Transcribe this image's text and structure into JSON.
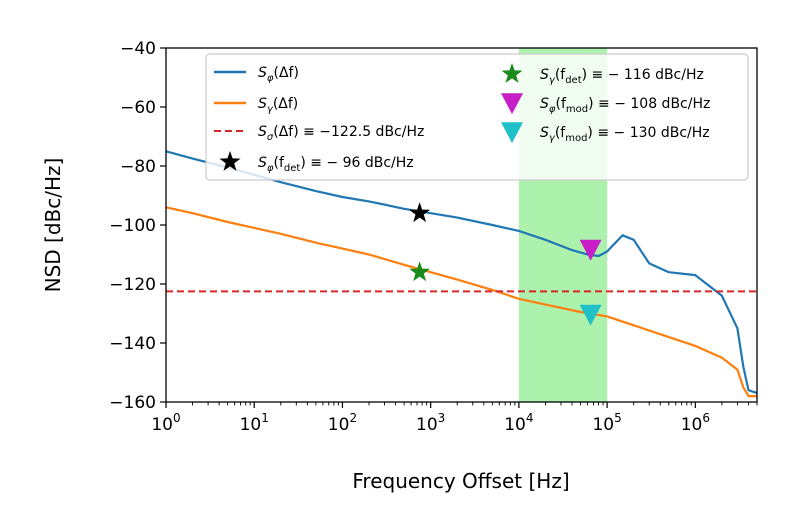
{
  "chart_data": {
    "type": "line",
    "xscale": "log",
    "xlim": [
      1,
      5000000
    ],
    "ylim": [
      -160,
      -40
    ],
    "xlabel": "Frequency Offset [Hz]",
    "ylabel": "NSD [dBc/Hz]",
    "grid": false,
    "legend_position": "top",
    "x_ticks": [
      {
        "base": "10",
        "exp": "0",
        "value": 1
      },
      {
        "base": "10",
        "exp": "1",
        "value": 10
      },
      {
        "base": "10",
        "exp": "2",
        "value": 100
      },
      {
        "base": "10",
        "exp": "3",
        "value": 1000
      },
      {
        "base": "10",
        "exp": "4",
        "value": 10000
      },
      {
        "base": "10",
        "exp": "5",
        "value": 100000
      },
      {
        "base": "10",
        "exp": "6",
        "value": 1000000
      }
    ],
    "y_ticks": [
      "−40",
      "−60",
      "−80",
      "−100",
      "−120",
      "−140",
      "−160"
    ],
    "y_tick_values": [
      -40,
      -60,
      -80,
      -100,
      -120,
      -140,
      -160
    ],
    "shaded_region": {
      "x": [
        10000,
        100000
      ],
      "color": "#90ee90"
    },
    "series": [
      {
        "name": "Sφ(Δf)",
        "color": "#1f77b4",
        "x": [
          1,
          2,
          5,
          10,
          20,
          50,
          100,
          200,
          500,
          1000,
          2000,
          5000,
          10000,
          20000,
          40000,
          60000,
          80000,
          100000,
          150000,
          200000,
          300000,
          500000,
          1000000,
          2000000,
          3000000,
          3500000,
          4000000,
          5000000
        ],
        "y": [
          -75,
          -77.5,
          -80.5,
          -83,
          -85.5,
          -88.5,
          -90.5,
          -92,
          -94.5,
          -96,
          -97.5,
          -100,
          -102,
          -105,
          -108.5,
          -110,
          -110.5,
          -109,
          -103.5,
          -105,
          -113,
          -116,
          -117,
          -124,
          -135,
          -148,
          -156,
          -157
        ]
      },
      {
        "name": "Sγ(Δf)",
        "color": "#ff7f0e",
        "x": [
          1,
          2,
          5,
          10,
          20,
          50,
          100,
          200,
          500,
          1000,
          2000,
          5000,
          10000,
          20000,
          50000,
          100000,
          200000,
          500000,
          1000000,
          2000000,
          3000000,
          3500000,
          4000000,
          5000000
        ],
        "y": [
          -94,
          -96,
          -99,
          -101,
          -103,
          -106,
          -108,
          -110,
          -113.5,
          -116,
          -118.5,
          -122,
          -125,
          -127,
          -129.5,
          -131,
          -134,
          -138,
          -141,
          -145,
          -149,
          -155,
          -158,
          -158
        ]
      }
    ],
    "reference_line": {
      "name": "Sσ(Δf) ≡ −122.5 dBc/Hz",
      "y": -122.5,
      "color": "#d62728",
      "style": "dashed"
    },
    "markers": [
      {
        "name": "Sφ(fdet) ≡ −96 dBc/Hz",
        "x": 750,
        "y": -96,
        "shape": "star",
        "color": "#000000"
      },
      {
        "name": "Sγ(fdet) ≡ −116 dBc/Hz",
        "x": 750,
        "y": -116,
        "shape": "star",
        "color": "#1a8a1a"
      },
      {
        "name": "Sφ(fmod) ≡ −108 dBc/Hz",
        "x": 65000,
        "y": -108,
        "shape": "triangle-down",
        "color": "#c71ec7"
      },
      {
        "name": "Sγ(fmod) ≡ −130 dBc/Hz",
        "x": 65000,
        "y": -130,
        "shape": "triangle-down",
        "color": "#1ec1c7"
      }
    ],
    "legend": {
      "left": [
        {
          "sym": "S",
          "sub": "φ",
          "rest": "(Δf)",
          "kind": "line",
          "color": "#1f77b4"
        },
        {
          "sym": "S",
          "sub": "γ",
          "rest": "(Δf)",
          "kind": "line",
          "color": "#ff7f0e"
        },
        {
          "sym": "S",
          "sub": "σ",
          "rest": "(Δf) ≡ −122.5 dBc/Hz",
          "kind": "dash",
          "color": "#d62728"
        },
        {
          "sym": "S",
          "sub": "φ",
          "rest": "(f",
          "sub2": "det",
          "rest2": ") ≡ − 96 dBc/Hz",
          "kind": "star",
          "color": "#000000"
        }
      ],
      "right": [
        {
          "sym": "S",
          "sub": "γ",
          "rest": "(f",
          "sub2": "det",
          "rest2": ") ≡ − 116 dBc/Hz",
          "kind": "star",
          "color": "#1a8a1a"
        },
        {
          "sym": "S",
          "sub": "φ",
          "rest": "(f",
          "sub2": "mod",
          "rest2": ") ≡ − 108 dBc/Hz",
          "kind": "tri",
          "color": "#c71ec7"
        },
        {
          "sym": "S",
          "sub": "γ",
          "rest": "(f",
          "sub2": "mod",
          "rest2": ") ≡ − 130 dBc/Hz",
          "kind": "tri",
          "color": "#1ec1c7"
        }
      ]
    }
  }
}
